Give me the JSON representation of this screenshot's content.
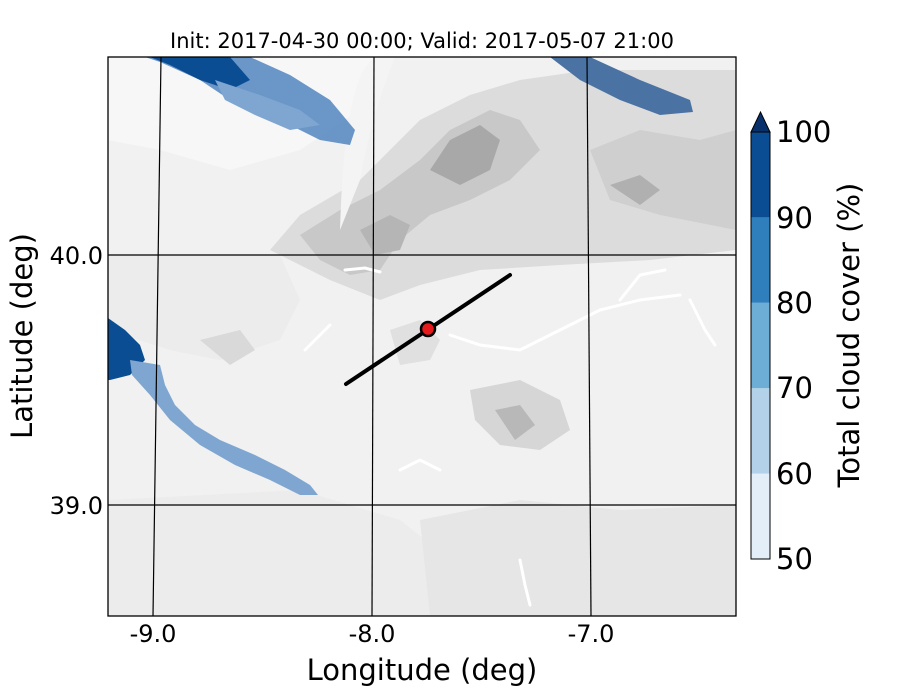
{
  "title": "Init: 2017-04-30 00:00; Valid: 2017-05-07 21:00",
  "map": {
    "xlabel": "Longitude (deg)",
    "ylabel": "Latitude (deg)",
    "x_ticks": [
      "-9.0",
      "-8.0",
      "-7.0"
    ],
    "y_ticks": [
      "40.0",
      "39.0"
    ],
    "extent": {
      "lon": [
        -9.25,
        -6.38
      ],
      "lat": [
        38.55,
        40.8
      ]
    },
    "cross_section": {
      "start": {
        "lon": -8.12,
        "lat": 39.47
      },
      "end": {
        "lon": -7.38,
        "lat": 39.92
      },
      "center": {
        "lon": -7.75,
        "lat": 39.69
      },
      "line_color": "#000000",
      "marker_color": "#e41a1c"
    }
  },
  "colorbar": {
    "label": "Total cloud cover (%)",
    "ticks": [
      "50",
      "60",
      "70",
      "80",
      "90",
      "100"
    ],
    "levels": [
      50,
      60,
      70,
      80,
      90,
      100
    ],
    "colors": [
      "#e3eef8",
      "#b3d1e8",
      "#6daed6",
      "#2f7fbd",
      "#0b4d93"
    ],
    "extend_color": "#08306b"
  },
  "terrain": {
    "base_color": "#f2f2f2",
    "mid_color": "#dcdcdc",
    "high_color": "#a9a9a9"
  }
}
